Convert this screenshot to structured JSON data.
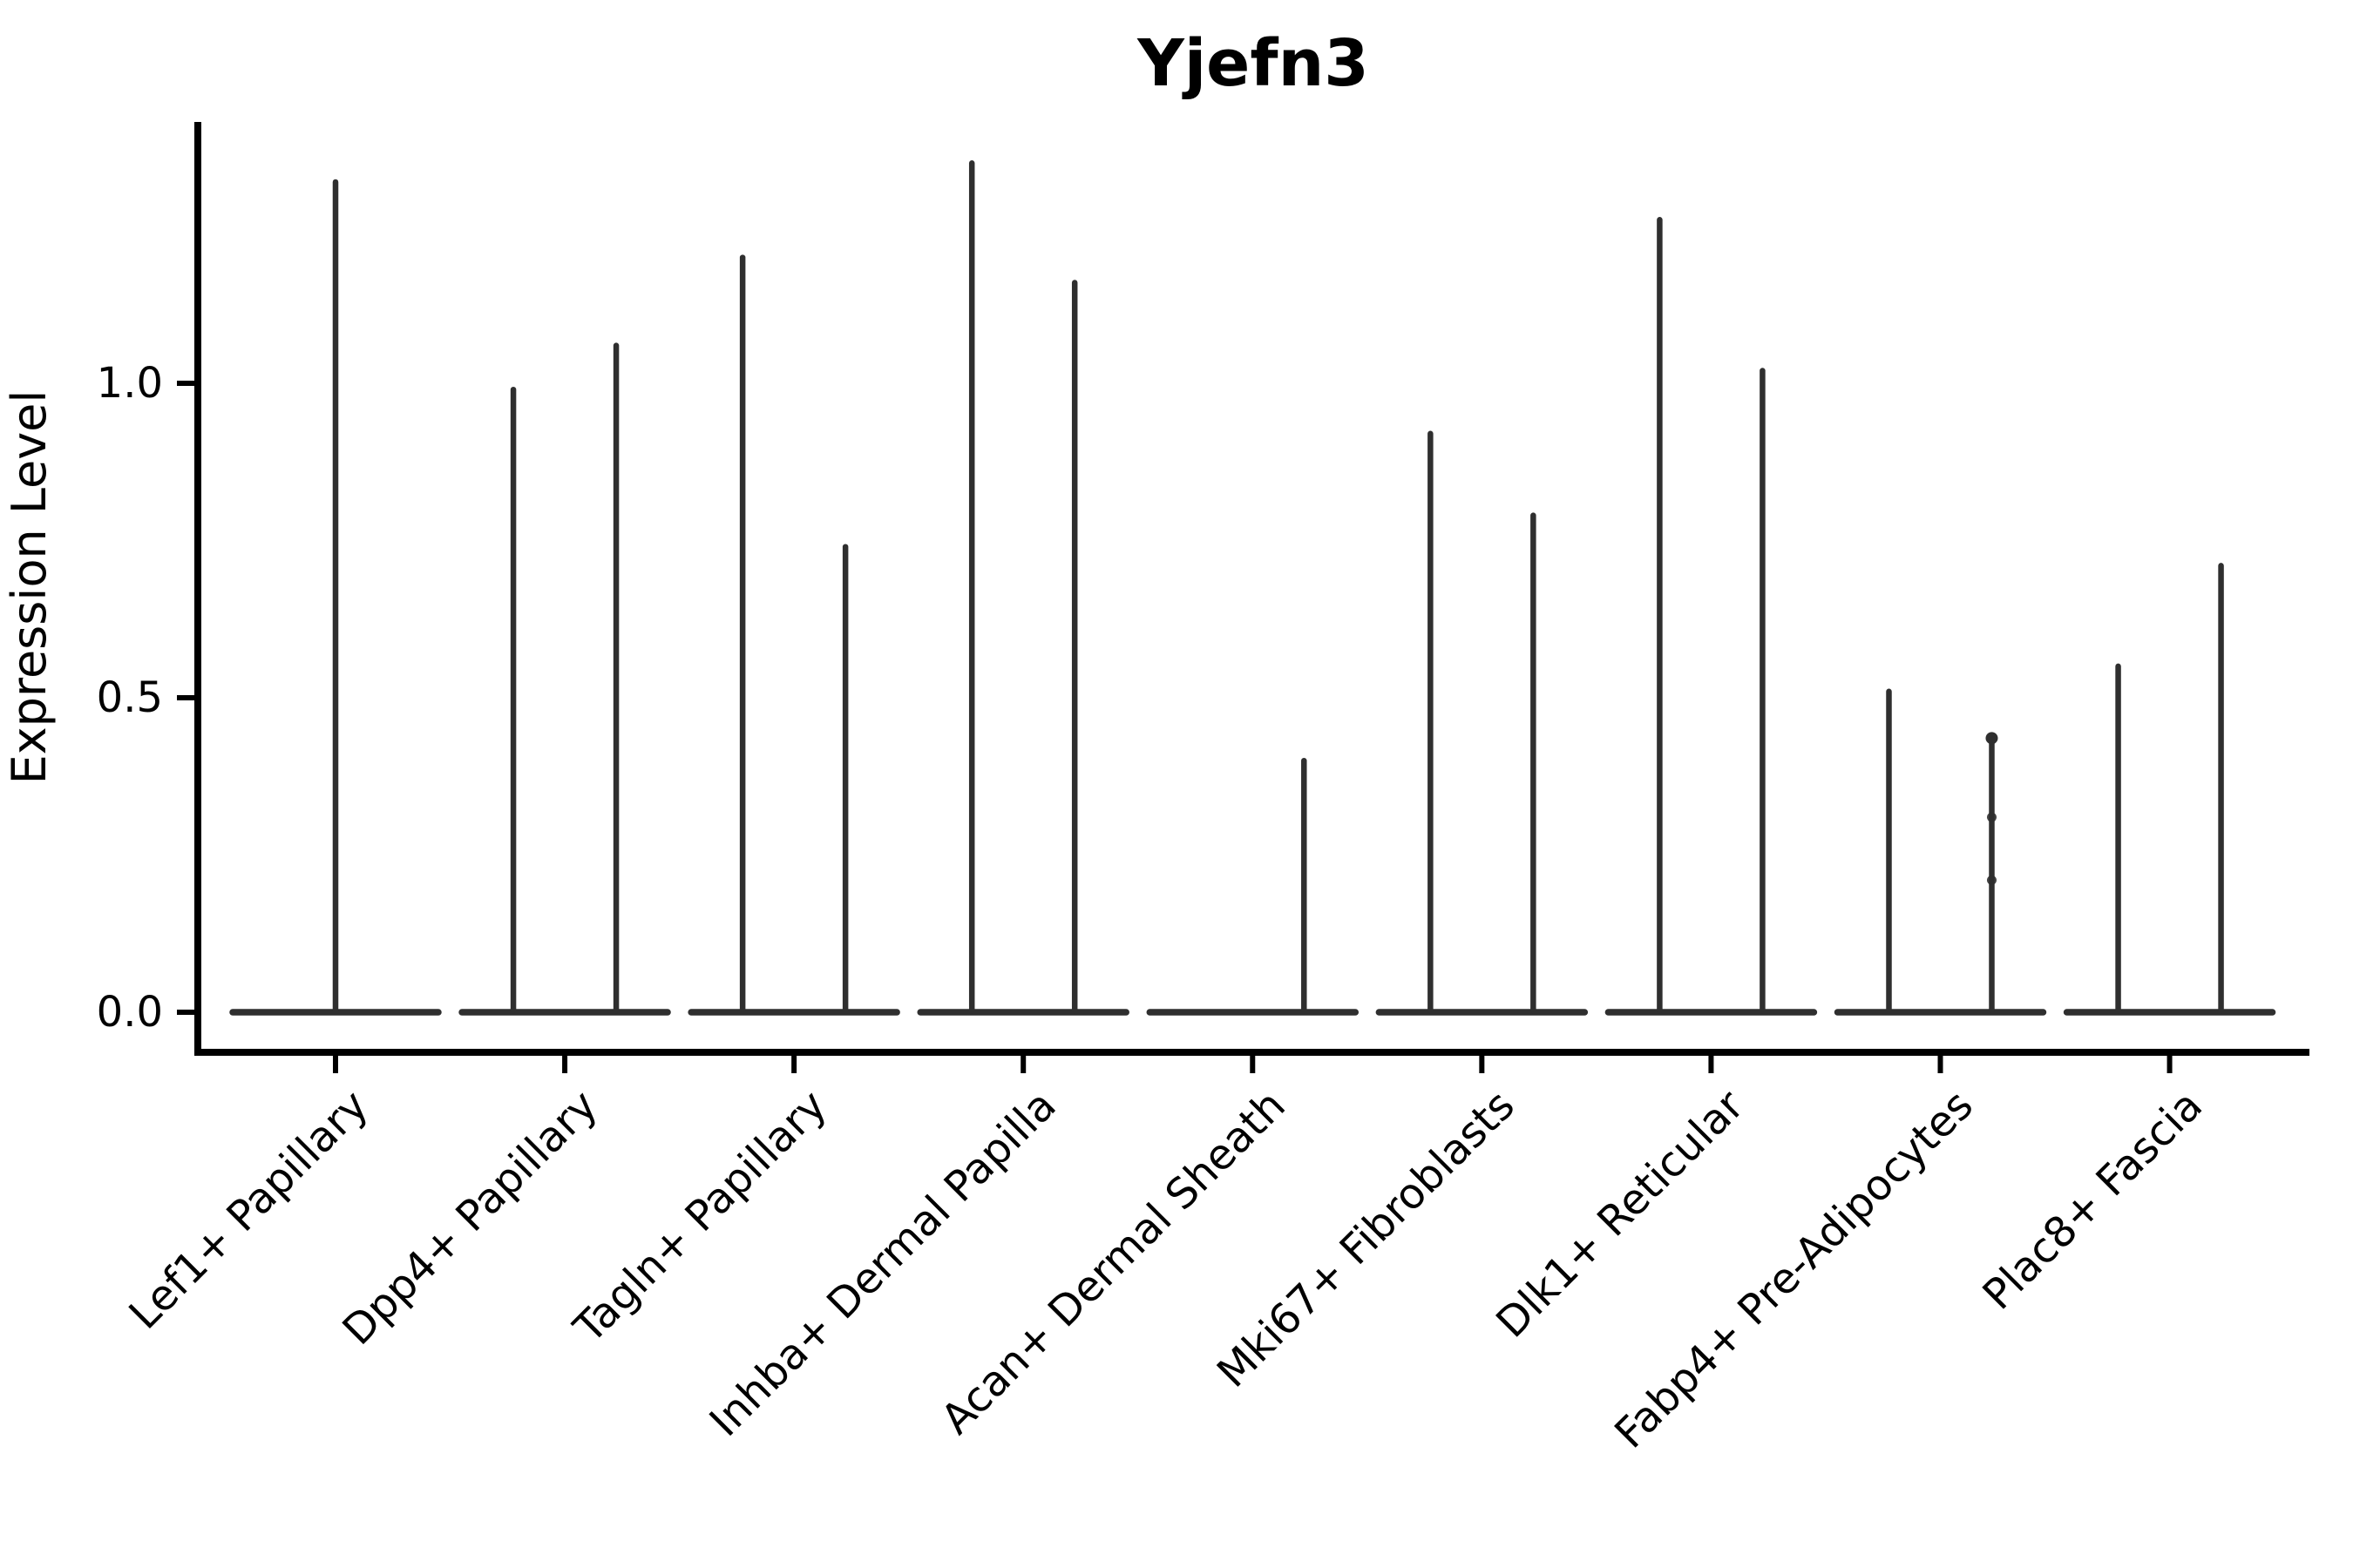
{
  "title": "Yjefn3",
  "chart_data": {
    "type": "violin",
    "title": "Yjefn3",
    "xlabel": "",
    "ylabel": "Expression Level",
    "yticks": [
      0.0,
      0.5,
      1.0
    ],
    "ytick_labels": [
      "0.0",
      "0.5",
      "1.0"
    ],
    "ylim": [
      -0.06,
      1.42
    ],
    "grid": false,
    "legend": "none",
    "violin_color": "#2f2f2f",
    "axis_color": "#000000",
    "categories": [
      "Lef1+ Papillary",
      "Dpp4+ Papillary",
      "Tagln+ Papillary",
      "Inhba+ Dermal Papilla",
      "Acan+ Dermal Sheath",
      "Mki67+ Fibroblasts",
      "Dlk1+ Reticular",
      "Fabp4+ Pre-Adipocytes",
      "Plac8+ Fascia"
    ],
    "violins": [
      {
        "category": "Lef1+ Papillary",
        "needles": [
          {
            "side": "center",
            "max": 1.32
          }
        ]
      },
      {
        "category": "Dpp4+ Papillary",
        "needles": [
          {
            "side": "left",
            "max": 0.99
          },
          {
            "side": "right",
            "max": 1.06
          }
        ]
      },
      {
        "category": "Tagln+ Papillary",
        "needles": [
          {
            "side": "left",
            "max": 1.2
          },
          {
            "side": "right",
            "max": 0.74
          }
        ]
      },
      {
        "category": "Inhba+ Dermal Papilla",
        "needles": [
          {
            "side": "left",
            "max": 1.35
          },
          {
            "side": "right",
            "max": 1.16
          }
        ]
      },
      {
        "category": "Acan+ Dermal Sheath",
        "needles": [
          {
            "side": "right",
            "max": 0.4
          }
        ]
      },
      {
        "category": "Mki67+ Fibroblasts",
        "needles": [
          {
            "side": "left",
            "max": 0.92
          },
          {
            "side": "right",
            "max": 0.79
          }
        ]
      },
      {
        "category": "Dlk1+ Reticular",
        "needles": [
          {
            "side": "left",
            "max": 1.26
          },
          {
            "side": "right",
            "max": 1.02
          }
        ]
      },
      {
        "category": "Fabp4+ Pre-Adipocytes",
        "needles": [
          {
            "side": "left",
            "max": 0.51
          },
          {
            "side": "right",
            "max": 0.44,
            "dots": [
              0.31,
              0.21
            ]
          }
        ]
      },
      {
        "category": "Plac8+ Fascia",
        "needles": [
          {
            "side": "left",
            "max": 0.55
          },
          {
            "side": "right",
            "max": 0.71
          }
        ]
      }
    ]
  }
}
